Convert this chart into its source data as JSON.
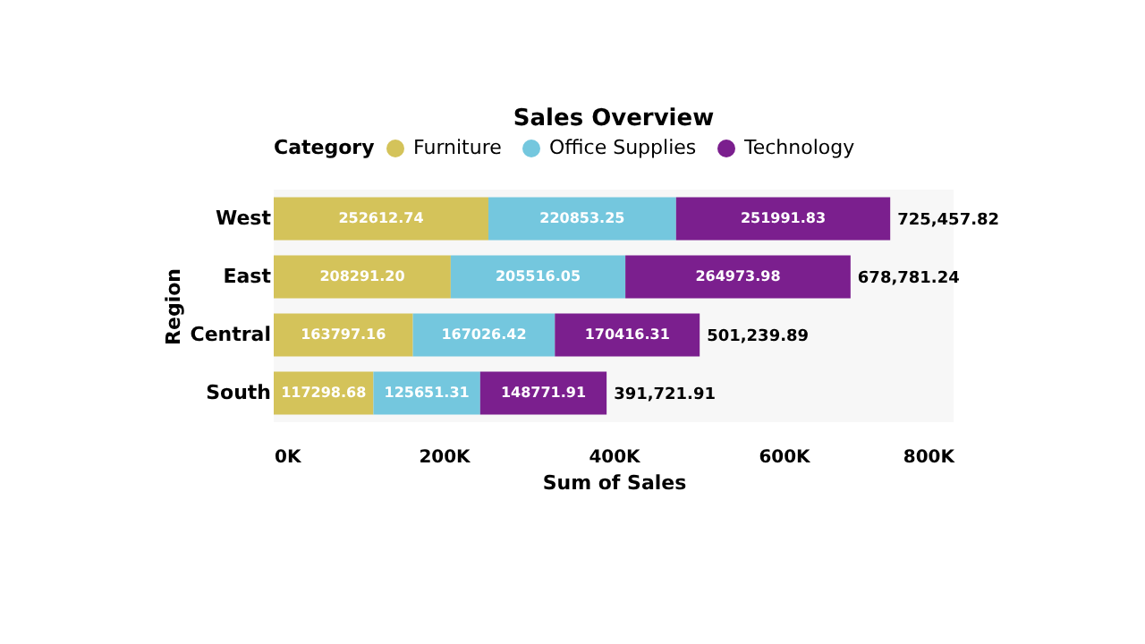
{
  "chart_data": {
    "type": "bar",
    "orientation": "horizontal",
    "stacked": true,
    "title": "Sales Overview",
    "xlabel": "Sum of Sales",
    "ylabel": "Region",
    "legend_title": "Category",
    "legend": "top",
    "categories": [
      "West",
      "East",
      "Central",
      "South"
    ],
    "series": [
      {
        "name": "Furniture",
        "color": "#d4c35a",
        "values": [
          252612.74,
          208291.2,
          163797.16,
          117298.68
        ],
        "value_labels": [
          "252612.74",
          "208291.20",
          "163797.16",
          "117298.68"
        ]
      },
      {
        "name": "Office Supplies",
        "color": "#74c7de",
        "values": [
          220853.25,
          205516.05,
          167026.42,
          125651.31
        ],
        "value_labels": [
          "220853.25",
          "205516.05",
          "167026.42",
          "125651.31"
        ]
      },
      {
        "name": "Technology",
        "color": "#7b1f8e",
        "values": [
          251991.83,
          264973.98,
          170416.31,
          148771.91
        ],
        "value_labels": [
          "251991.83",
          "264973.98",
          "170416.31",
          "148771.91"
        ]
      }
    ],
    "totals": [
      "725,457.82",
      "678,781.24",
      "501,239.89",
      "391,721.91"
    ],
    "xlim": [
      0,
      800000
    ],
    "xticks": [
      {
        "value": 0,
        "label": "0K"
      },
      {
        "value": 200000,
        "label": "200K"
      },
      {
        "value": 400000,
        "label": "400K"
      },
      {
        "value": 600000,
        "label": "600K"
      },
      {
        "value": 800000,
        "label": "800K"
      }
    ],
    "grid": false
  }
}
